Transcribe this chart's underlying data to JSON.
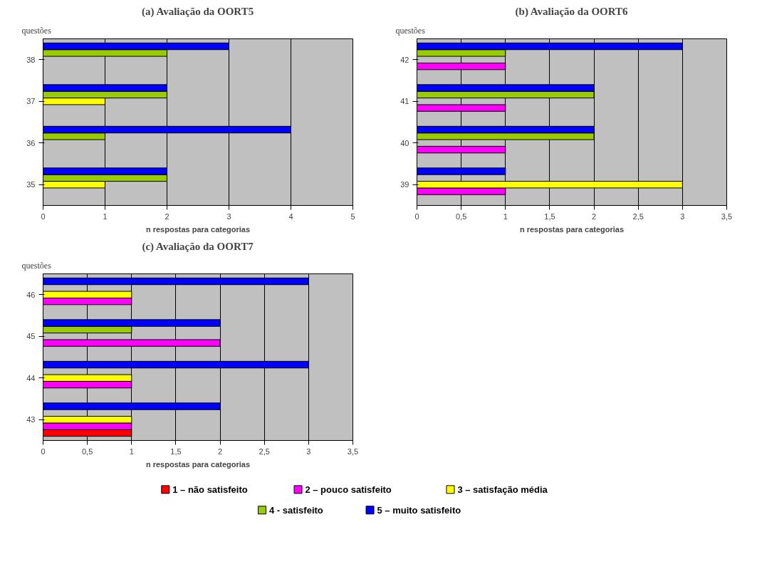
{
  "chart_data": [
    {
      "type": "bar",
      "orientation": "horizontal",
      "title": "(a) Avaliação da OORT5",
      "ylabel": "questões",
      "xlabel": "n respostas para categorias",
      "categories": [
        "38",
        "37",
        "36",
        "35"
      ],
      "xlim": [
        0,
        5
      ],
      "xticks": [
        0,
        1,
        2,
        3,
        4,
        5
      ],
      "grid": "x",
      "legend": false,
      "series": [
        {
          "color": "#ff0000",
          "values": [
            null,
            null,
            null,
            null
          ]
        },
        {
          "color": "#ff00ff",
          "values": [
            null,
            null,
            null,
            null
          ]
        },
        {
          "color": "#ffff00",
          "values": [
            null,
            1,
            null,
            1
          ]
        },
        {
          "color": "#99cc00",
          "values": [
            2,
            2,
            1,
            2
          ]
        },
        {
          "color": "#0000ff",
          "values": [
            3,
            2,
            4,
            2
          ]
        }
      ]
    },
    {
      "type": "bar",
      "orientation": "horizontal",
      "title": "(b) Avaliação da OORT6",
      "ylabel": "questões",
      "xlabel": "n respostas para categorias",
      "categories": [
        "42",
        "41",
        "40",
        "39"
      ],
      "xlim": [
        0,
        3.5
      ],
      "xticks": [
        0,
        {
          "value": 0.5,
          "label": "0,5"
        },
        1,
        {
          "value": 1.5,
          "label": "1,5"
        },
        2,
        {
          "value": 2.5,
          "label": "2,5"
        },
        3,
        {
          "value": 3.5,
          "label": "3,5"
        }
      ],
      "grid": "x",
      "legend": false,
      "series": [
        {
          "color": "#ff0000",
          "values": [
            null,
            null,
            null,
            null
          ]
        },
        {
          "color": "#ff00ff",
          "values": [
            1,
            1,
            1,
            1
          ]
        },
        {
          "color": "#ffff00",
          "values": [
            null,
            null,
            null,
            3
          ]
        },
        {
          "color": "#99cc00",
          "values": [
            1,
            2,
            2,
            null
          ]
        },
        {
          "color": "#0000ff",
          "values": [
            3,
            2,
            2,
            1
          ]
        }
      ]
    },
    {
      "type": "bar",
      "orientation": "horizontal",
      "title": "(c) Avaliação da OORT7",
      "ylabel": "questões",
      "xlabel": "n respostas para categorias",
      "categories": [
        "46",
        "45",
        "44",
        "43"
      ],
      "xlim": [
        0,
        3.5
      ],
      "xticks": [
        0,
        {
          "value": 0.5,
          "label": "0,5"
        },
        1,
        {
          "value": 1.5,
          "label": "1,5"
        },
        2,
        {
          "value": 2.5,
          "label": "2,5"
        },
        3,
        {
          "value": 3.5,
          "label": "3,5"
        }
      ],
      "grid": "x",
      "legend": "bottom",
      "series": [
        {
          "name": "1 – não satisfeito",
          "color": "#ff0000",
          "values": [
            null,
            null,
            null,
            1
          ]
        },
        {
          "name": "2 – pouco satisfeito",
          "color": "#ff00ff",
          "values": [
            1,
            2,
            1,
            1
          ]
        },
        {
          "name": "3 – satisfação média",
          "color": "#ffff00",
          "values": [
            1,
            null,
            1,
            1
          ]
        },
        {
          "name": "4 - satisfeito",
          "color": "#99cc00",
          "values": [
            null,
            1,
            null,
            null
          ]
        },
        {
          "name": "5 – muito satisfeito",
          "color": "#0000ff",
          "values": [
            3,
            2,
            3,
            2
          ]
        }
      ]
    }
  ]
}
